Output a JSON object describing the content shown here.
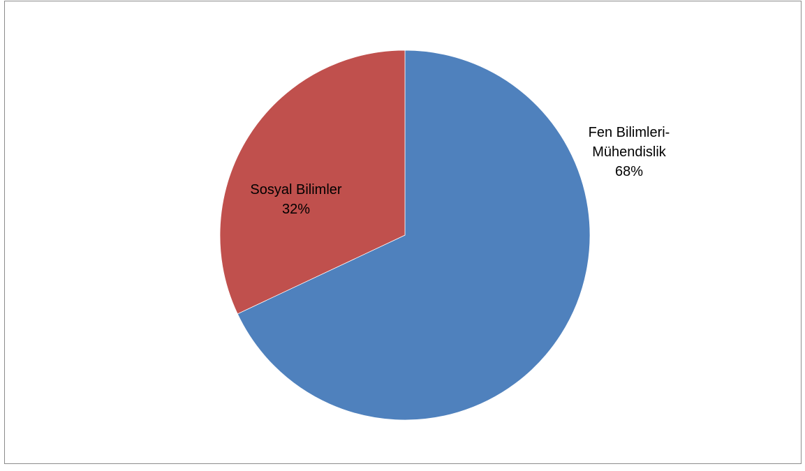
{
  "chart_data": {
    "type": "pie",
    "title": "",
    "slices": [
      {
        "label_lines": [
          "Fen Bilimleri-",
          "Mühendislik"
        ],
        "percent_label": "68%",
        "value": 68,
        "color": "#4f81bd"
      },
      {
        "label_lines": [
          "Sosyal Bilimler"
        ],
        "percent_label": "32%",
        "value": 32,
        "color": "#c0504d"
      }
    ],
    "start_angle": "12 o'clock",
    "direction": "clockwise",
    "legend": "none"
  }
}
